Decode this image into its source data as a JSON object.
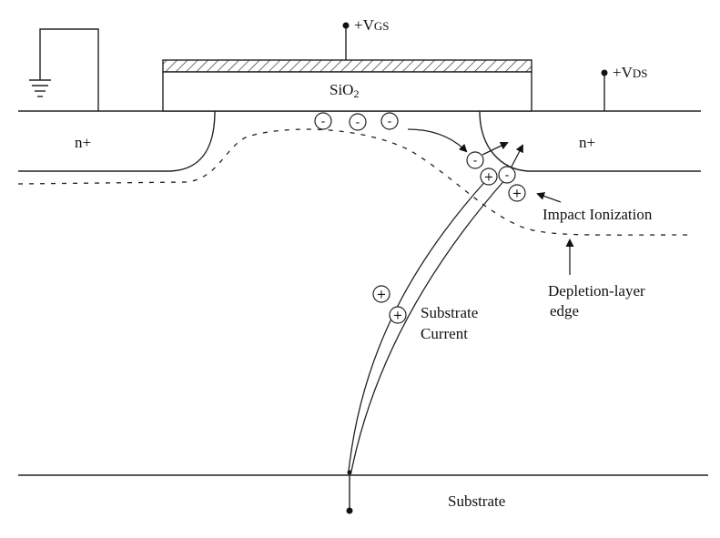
{
  "labels": {
    "vgs_prefix": "+V",
    "vgs_sub": "GS",
    "vds_prefix": "+V",
    "vds_sub": "DS",
    "oxide": "SiO",
    "oxide_sub": "2",
    "source": "n+",
    "drain": "n+",
    "impact": "Impact Ionization",
    "depletion_1": "Depletion-layer",
    "depletion_2": "edge",
    "substrate_current_1": "Substrate",
    "substrate_current_2": "Current",
    "substrate": "Substrate"
  },
  "carriers": {
    "electron_sign": "-",
    "hole_sign": "+"
  }
}
